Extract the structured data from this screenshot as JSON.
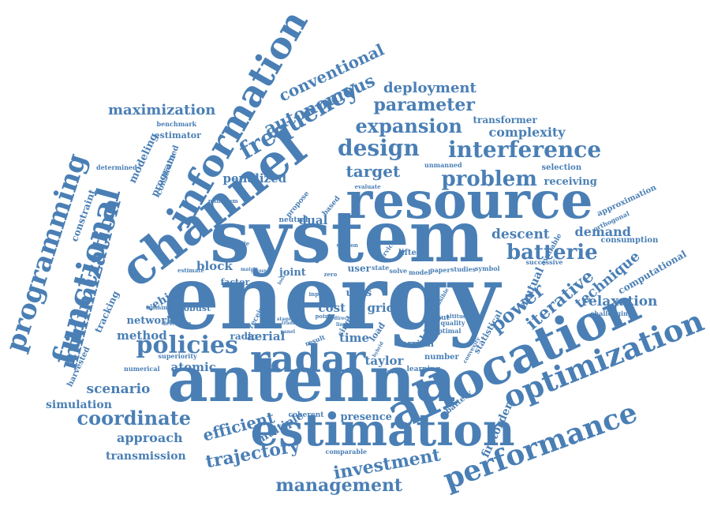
{
  "color": "#4a7fb5",
  "words": [
    {
      "text": "energy"
    },
    {
      "text": "system"
    },
    {
      "text": "antenna"
    },
    {
      "text": "resource"
    },
    {
      "text": "channel"
    },
    {
      "text": "allocation"
    },
    {
      "text": "estimation"
    },
    {
      "text": "information"
    },
    {
      "text": "radar"
    },
    {
      "text": "optimization"
    },
    {
      "text": "performance"
    },
    {
      "text": "functional"
    },
    {
      "text": "programming"
    },
    {
      "text": "minimization"
    },
    {
      "text": "policies"
    },
    {
      "text": "frequency"
    },
    {
      "text": "interference"
    },
    {
      "text": "design"
    },
    {
      "text": "problem"
    },
    {
      "text": "batterie"
    },
    {
      "text": "expansion"
    },
    {
      "text": "parameter"
    },
    {
      "text": "autonomous"
    },
    {
      "text": "conventional"
    },
    {
      "text": "deployment"
    },
    {
      "text": "maximization"
    },
    {
      "text": "coordinate"
    },
    {
      "text": "investment"
    },
    {
      "text": "management"
    },
    {
      "text": "trajectory"
    },
    {
      "text": "efficient"
    },
    {
      "text": "power"
    },
    {
      "text": "iterative"
    },
    {
      "text": "technique"
    },
    {
      "text": "relaxation"
    },
    {
      "text": "descent"
    },
    {
      "text": "demand"
    },
    {
      "text": "target"
    },
    {
      "text": "complexity"
    },
    {
      "text": "transformer"
    },
    {
      "text": "scenario"
    },
    {
      "text": "simulation"
    },
    {
      "text": "approach"
    },
    {
      "text": "transmission"
    },
    {
      "text": "multiple"
    },
    {
      "text": "atomic"
    },
    {
      "text": "taylor"
    },
    {
      "text": "method"
    },
    {
      "text": "aerial"
    },
    {
      "text": "time"
    },
    {
      "text": "grid"
    },
    {
      "text": "cost"
    },
    {
      "text": "block"
    },
    {
      "text": "penalized"
    },
    {
      "text": "dual"
    },
    {
      "text": "vehicle"
    },
    {
      "text": "network"
    },
    {
      "text": "tracking"
    },
    {
      "text": "modeling"
    },
    {
      "text": "program"
    },
    {
      "text": "constrained"
    },
    {
      "text": "constraint"
    },
    {
      "text": "estimator"
    },
    {
      "text": "benchmark"
    },
    {
      "text": "determined"
    },
    {
      "text": "harvested"
    },
    {
      "text": "firstorder"
    },
    {
      "text": "presence"
    },
    {
      "text": "mutual"
    },
    {
      "text": "computational"
    },
    {
      "text": "receiving"
    },
    {
      "text": "selection"
    },
    {
      "text": "approximation"
    },
    {
      "text": "consumption"
    },
    {
      "text": "orthogonal"
    },
    {
      "text": "available"
    },
    {
      "text": "successive"
    },
    {
      "text": "challenging"
    },
    {
      "text": "joint"
    },
    {
      "text": "factor"
    },
    {
      "text": "uavs"
    },
    {
      "text": "user"
    },
    {
      "text": "data"
    },
    {
      "text": "blind"
    },
    {
      "text": "arrival"
    },
    {
      "text": "load"
    },
    {
      "text": "single"
    },
    {
      "text": "number"
    },
    {
      "text": "statistical"
    },
    {
      "text": "battery"
    },
    {
      "text": "output"
    },
    {
      "text": "quality"
    },
    {
      "text": "optimal"
    },
    {
      "text": "learning"
    },
    {
      "text": "solution"
    },
    {
      "text": "comparable"
    },
    {
      "text": "coherent"
    },
    {
      "text": "radio"
    },
    {
      "text": "superiority"
    },
    {
      "text": "numerical"
    },
    {
      "text": "training"
    },
    {
      "text": "robust"
    },
    {
      "text": "detection"
    },
    {
      "text": "receiver"
    },
    {
      "text": "result"
    },
    {
      "text": "neutral"
    },
    {
      "text": "propose"
    },
    {
      "text": "based"
    },
    {
      "text": "evaluate"
    },
    {
      "text": "unmanned"
    },
    {
      "text": "lifted"
    },
    {
      "text": "service"
    },
    {
      "text": "state"
    },
    {
      "text": "solve"
    },
    {
      "text": "model"
    },
    {
      "text": "paper"
    },
    {
      "text": "studies"
    },
    {
      "text": "symbol"
    },
    {
      "text": "zero"
    },
    {
      "text": "input"
    },
    {
      "text": "case"
    },
    {
      "text": "point"
    },
    {
      "text": "altitude"
    },
    {
      "text": "feasible"
    },
    {
      "text": "convexity"
    },
    {
      "text": "mobile"
    },
    {
      "text": "estimate"
    },
    {
      "text": "minimum"
    },
    {
      "text": "station"
    },
    {
      "text": "ground"
    },
    {
      "text": "matrix"
    },
    {
      "text": "stage"
    },
    {
      "text": "hybrid"
    },
    {
      "text": "direct"
    },
    {
      "text": "linear"
    },
    {
      "text": "trade"
    },
    {
      "text": "panel"
    },
    {
      "text": "loss"
    }
  ]
}
